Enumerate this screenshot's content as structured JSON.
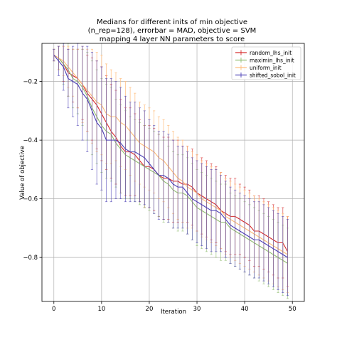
{
  "chart_data": {
    "type": "line",
    "title": "Medians for different inits of min objective",
    "subtitle_lines": [
      "(n_rep=128), errorbar = MAD, objective = SVM",
      "mapping 4 layer NN parameters to score"
    ],
    "xlabel": "Iteration",
    "ylabel": "Value of objective",
    "xlim": [
      -2.5,
      52.5
    ],
    "ylim": [
      -0.95,
      -0.07
    ],
    "xticks": [
      0,
      10,
      20,
      30,
      40,
      50
    ],
    "yticks": [
      -0.2,
      -0.4,
      -0.6,
      -0.8
    ],
    "grid": true,
    "legend_position": "top-right",
    "x": [
      0,
      1,
      2,
      3,
      4,
      5,
      6,
      7,
      8,
      9,
      10,
      11,
      12,
      13,
      14,
      15,
      16,
      17,
      18,
      19,
      20,
      21,
      22,
      23,
      24,
      25,
      26,
      27,
      28,
      29,
      30,
      31,
      32,
      33,
      34,
      35,
      36,
      37,
      38,
      39,
      40,
      41,
      42,
      43,
      44,
      45,
      46,
      47,
      48,
      49
    ],
    "series": [
      {
        "name": "random_lhs_init",
        "color": "#d62728",
        "values": [
          -0.11,
          -0.12,
          -0.14,
          -0.17,
          -0.18,
          -0.19,
          -0.21,
          -0.24,
          -0.26,
          -0.28,
          -0.31,
          -0.34,
          -0.37,
          -0.39,
          -0.42,
          -0.44,
          -0.44,
          -0.45,
          -0.47,
          -0.49,
          -0.49,
          -0.5,
          -0.52,
          -0.53,
          -0.53,
          -0.54,
          -0.54,
          -0.55,
          -0.55,
          -0.56,
          -0.58,
          -0.59,
          -0.6,
          -0.61,
          -0.62,
          -0.64,
          -0.65,
          -0.66,
          -0.66,
          -0.67,
          -0.68,
          -0.69,
          -0.71,
          -0.71,
          -0.72,
          -0.73,
          -0.74,
          -0.75,
          -0.75,
          -0.78
        ],
        "err": [
          0.02,
          0.04,
          0.06,
          0.08,
          0.09,
          0.1,
          0.12,
          0.13,
          0.14,
          0.15,
          0.16,
          0.16,
          0.16,
          0.16,
          0.16,
          0.15,
          0.15,
          0.14,
          0.14,
          0.14,
          0.14,
          0.14,
          0.14,
          0.14,
          0.14,
          0.14,
          0.14,
          0.13,
          0.13,
          0.13,
          0.13,
          0.13,
          0.13,
          0.13,
          0.13,
          0.13,
          0.13,
          0.13,
          0.13,
          0.12,
          0.12,
          0.12,
          0.12,
          0.12,
          0.12,
          0.12,
          0.12,
          0.12,
          0.12,
          0.12
        ]
      },
      {
        "name": "maximin_lhs_init",
        "color": "#8fbc6f",
        "values": [
          -0.11,
          -0.12,
          -0.14,
          -0.16,
          -0.19,
          -0.2,
          -0.22,
          -0.25,
          -0.29,
          -0.32,
          -0.35,
          -0.37,
          -0.38,
          -0.41,
          -0.43,
          -0.45,
          -0.46,
          -0.47,
          -0.48,
          -0.49,
          -0.5,
          -0.51,
          -0.52,
          -0.54,
          -0.55,
          -0.57,
          -0.58,
          -0.58,
          -0.59,
          -0.61,
          -0.63,
          -0.64,
          -0.65,
          -0.66,
          -0.67,
          -0.68,
          -0.68,
          -0.7,
          -0.71,
          -0.72,
          -0.73,
          -0.74,
          -0.75,
          -0.76,
          -0.77,
          -0.78,
          -0.79,
          -0.8,
          -0.81,
          -0.82
        ],
        "err": [
          0.02,
          0.04,
          0.07,
          0.09,
          0.1,
          0.11,
          0.13,
          0.15,
          0.16,
          0.16,
          0.16,
          0.16,
          0.16,
          0.15,
          0.15,
          0.15,
          0.14,
          0.14,
          0.14,
          0.14,
          0.14,
          0.14,
          0.14,
          0.14,
          0.13,
          0.13,
          0.13,
          0.13,
          0.13,
          0.13,
          0.13,
          0.13,
          0.13,
          0.13,
          0.13,
          0.13,
          0.13,
          0.12,
          0.12,
          0.12,
          0.12,
          0.12,
          0.12,
          0.12,
          0.12,
          0.12,
          0.12,
          0.12,
          0.12,
          0.12
        ]
      },
      {
        "name": "uniform_init",
        "color": "#ffbb78",
        "values": [
          -0.11,
          -0.12,
          -0.13,
          -0.15,
          -0.17,
          -0.19,
          -0.21,
          -0.23,
          -0.25,
          -0.27,
          -0.28,
          -0.31,
          -0.32,
          -0.32,
          -0.34,
          -0.35,
          -0.37,
          -0.39,
          -0.41,
          -0.42,
          -0.43,
          -0.44,
          -0.46,
          -0.47,
          -0.49,
          -0.51,
          -0.53,
          -0.54,
          -0.56,
          -0.57,
          -0.58,
          -0.6,
          -0.61,
          -0.62,
          -0.63,
          -0.64,
          -0.66,
          -0.67,
          -0.68,
          -0.69,
          -0.7,
          -0.71,
          -0.72,
          -0.73,
          -0.74,
          -0.75,
          -0.76,
          -0.77,
          -0.78,
          -0.79
        ],
        "err": [
          0.02,
          0.04,
          0.05,
          0.07,
          0.08,
          0.1,
          0.13,
          0.14,
          0.16,
          0.17,
          0.17,
          0.17,
          0.16,
          0.15,
          0.15,
          0.15,
          0.15,
          0.15,
          0.14,
          0.14,
          0.14,
          0.14,
          0.14,
          0.14,
          0.14,
          0.14,
          0.14,
          0.14,
          0.14,
          0.13,
          0.13,
          0.13,
          0.13,
          0.13,
          0.13,
          0.13,
          0.13,
          0.13,
          0.13,
          0.13,
          0.13,
          0.13,
          0.13,
          0.13,
          0.13,
          0.13,
          0.13,
          0.13,
          0.13,
          0.13
        ]
      },
      {
        "name": "shifted_sobol_init",
        "color": "#4a3fb5",
        "values": [
          -0.11,
          -0.13,
          -0.15,
          -0.19,
          -0.2,
          -0.21,
          -0.24,
          -0.26,
          -0.3,
          -0.34,
          -0.36,
          -0.4,
          -0.4,
          -0.4,
          -0.41,
          -0.43,
          -0.44,
          -0.44,
          -0.45,
          -0.46,
          -0.48,
          -0.5,
          -0.52,
          -0.52,
          -0.53,
          -0.55,
          -0.56,
          -0.56,
          -0.58,
          -0.6,
          -0.61,
          -0.62,
          -0.63,
          -0.64,
          -0.64,
          -0.65,
          -0.67,
          -0.69,
          -0.7,
          -0.71,
          -0.72,
          -0.73,
          -0.74,
          -0.74,
          -0.75,
          -0.76,
          -0.77,
          -0.78,
          -0.79,
          -0.8
        ],
        "err": [
          0.02,
          0.05,
          0.08,
          0.1,
          0.12,
          0.14,
          0.16,
          0.18,
          0.2,
          0.21,
          0.21,
          0.21,
          0.21,
          0.2,
          0.19,
          0.18,
          0.17,
          0.17,
          0.16,
          0.16,
          0.15,
          0.15,
          0.15,
          0.15,
          0.15,
          0.15,
          0.14,
          0.14,
          0.14,
          0.14,
          0.14,
          0.14,
          0.14,
          0.14,
          0.14,
          0.13,
          0.13,
          0.13,
          0.13,
          0.13,
          0.13,
          0.13,
          0.13,
          0.13,
          0.13,
          0.13,
          0.13,
          0.13,
          0.13,
          0.13
        ]
      }
    ]
  }
}
